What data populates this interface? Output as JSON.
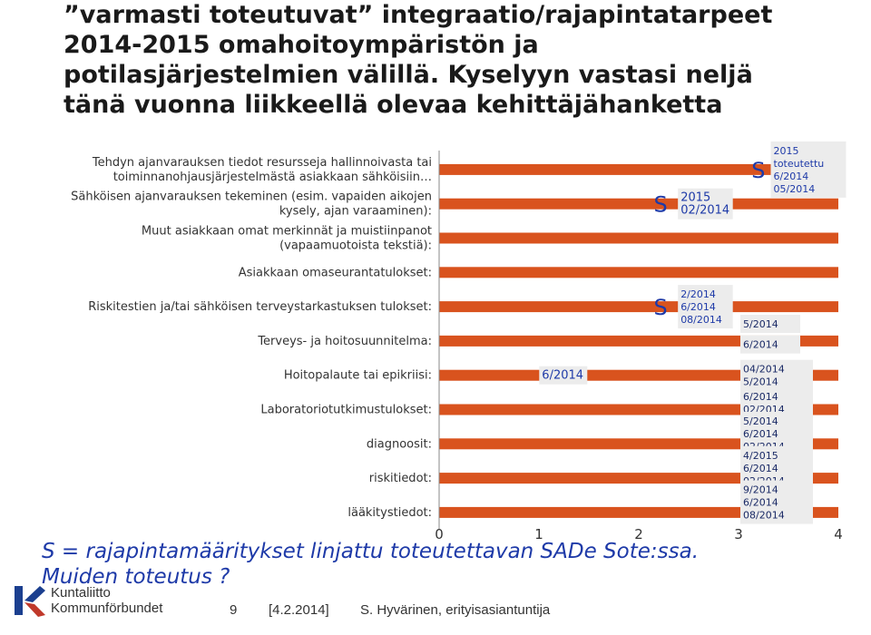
{
  "title_lines": [
    "”varmasti toteutuvat” integraatio/rajapintatarpeet",
    "2014-2015 omahoitoympäristön ja",
    "potilasjärjestelmien välillä. Kyselyyn vastasi neljä",
    "tänä vuonna liikkeellä olevaa kehittäjähanketta"
  ],
  "chart_data": {
    "type": "bar",
    "orientation": "horizontal",
    "xlim": [
      0,
      4
    ],
    "x_ticks": [
      "0",
      "1",
      "2",
      "3",
      "4"
    ],
    "categories": [
      [
        "Tehdyn ajanvarauksen tiedot resursseja hallinnoivasta tai",
        "toiminnanohjausjärjestelmästä asiakkaan sähköisiin…"
      ],
      [
        "Sähköisen ajanvarauksen tekeminen (esim. vapaiden aikojen",
        "kysely, ajan varaaminen):"
      ],
      [
        "Muut asiakkaan omat merkinnät ja muistiinpanot",
        "(vapaamuotoista tekstiä):"
      ],
      [
        "Asiakkaan omaseurantatulokset:"
      ],
      [
        "Riskitestien ja/tai sähköisen terveystarkastuksen tulokset:"
      ],
      [
        "Terveys- ja hoitosuunnitelma:"
      ],
      [
        "Hoitopalaute tai epikriisi:"
      ],
      [
        "Laboratoriotutkimustulokset:"
      ],
      [
        "diagnoosit:"
      ],
      [
        "riskitiedot:"
      ],
      [
        "lääkitystiedot:"
      ]
    ],
    "values": [
      4,
      4,
      4,
      4,
      4,
      4,
      4,
      4,
      4,
      4,
      4
    ],
    "bar_color": "#d9531e",
    "annotations": [
      {
        "x": 2.15,
        "y": 1.5,
        "text": [
          "S"
        ],
        "large": true,
        "box": false
      },
      {
        "x": 2.42,
        "y": 1.5,
        "text": [
          "2015",
          "02/2014"
        ],
        "large": false,
        "box": true
      },
      {
        "x": 2.15,
        "y": 4.5,
        "text": [
          "S"
        ],
        "large": true,
        "box": false
      },
      {
        "x": 2.42,
        "y": 4.5,
        "text": [
          "2/2014",
          "6/2014",
          "08/2014"
        ],
        "large": false,
        "box": true
      },
      {
        "x": 1.03,
        "y": 6.5,
        "text": [
          "6/2014"
        ],
        "large": false,
        "box": true
      },
      {
        "x": 3.13,
        "y": 0.5,
        "text": [
          "S"
        ],
        "large": true,
        "box": false
      },
      {
        "x": 3.35,
        "y": 0.5,
        "text": [
          "2015",
          "toteutettu",
          "6/2014",
          "05/2014"
        ],
        "large": false,
        "box": true
      }
    ]
  },
  "side_labels": [
    {
      "y": 5.0,
      "text": [
        "5/2014"
      ]
    },
    {
      "y": 5.6,
      "text": [
        "6/2014"
      ]
    },
    {
      "y": 6.5,
      "text": [
        "04/2014",
        "5/2014"
      ]
    },
    {
      "y": 7.3,
      "text": [
        "6/2014",
        "02/2014"
      ]
    },
    {
      "y": 8.2,
      "text": [
        "5/2014",
        "6/2014",
        "02/2014"
      ]
    },
    {
      "y": 9.2,
      "text": [
        "4/2015",
        "6/2014",
        "02/2014"
      ]
    },
    {
      "y": 10.2,
      "text": [
        "9/2014",
        "6/2014",
        "08/2014"
      ]
    }
  ],
  "footer_note": [
    "S = rajapintamääritykset linjattu toteutettavan SADe Sote:ssa.",
    "Muiden toteutus ?"
  ],
  "logo": {
    "line1": "Kuntaliitto",
    "line2": "Kommunförbundet"
  },
  "page_number": "9",
  "date": "[4.2.2014]",
  "author": "S. Hyvärinen, erityisasiantuntija"
}
